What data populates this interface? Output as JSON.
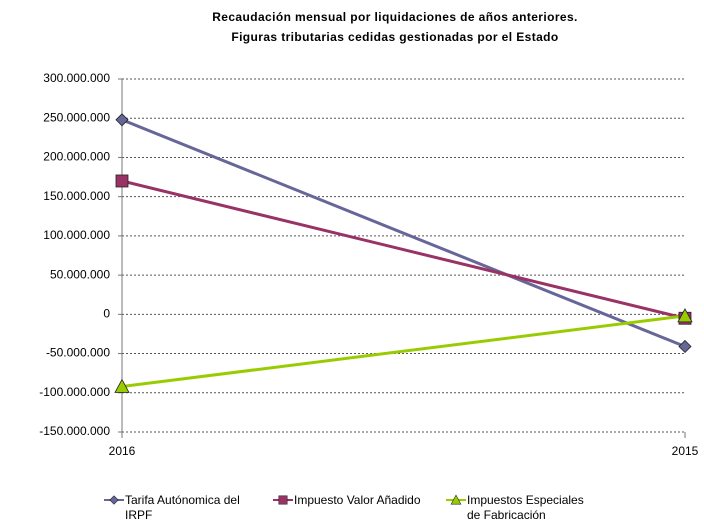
{
  "chart_data": {
    "type": "line",
    "title": "Recaudación mensual por liquidaciones de años anteriores.",
    "subtitle": "Figuras tributarias cedidas gestionadas por el Estado",
    "categories": [
      "2016",
      "2015"
    ],
    "series": [
      {
        "name": "Tarifa Autónomica del IRPF",
        "color": "#666699",
        "marker": "diamond",
        "values": [
          248000000,
          -41000000
        ]
      },
      {
        "name": "Impuesto Valor Añadido",
        "color": "#993366",
        "marker": "square",
        "values": [
          170000000,
          -5000000
        ]
      },
      {
        "name": "Impuestos Especiales de Fabricación",
        "color": "#99cc00",
        "marker": "triangle",
        "values": [
          -92000000,
          -2000000
        ]
      }
    ],
    "ylim": [
      -150000000,
      300000000
    ],
    "yticks": [
      {
        "value": -150000000,
        "label": "-150.000.000"
      },
      {
        "value": -100000000,
        "label": "-100.000.000"
      },
      {
        "value": -50000000,
        "label": "-50.000.000"
      },
      0,
      {
        "value": 50000000,
        "label": "50.000.000"
      },
      {
        "value": 100000000,
        "label": "100.000.000"
      },
      {
        "value": 150000000,
        "label": "150.000.000"
      },
      {
        "value": 200000000,
        "label": "200.000.000"
      },
      {
        "value": 250000000,
        "label": "250.000.000"
      },
      {
        "value": 300000000,
        "label": "300.000.000"
      }
    ],
    "grid": true,
    "legend": "bottom"
  }
}
